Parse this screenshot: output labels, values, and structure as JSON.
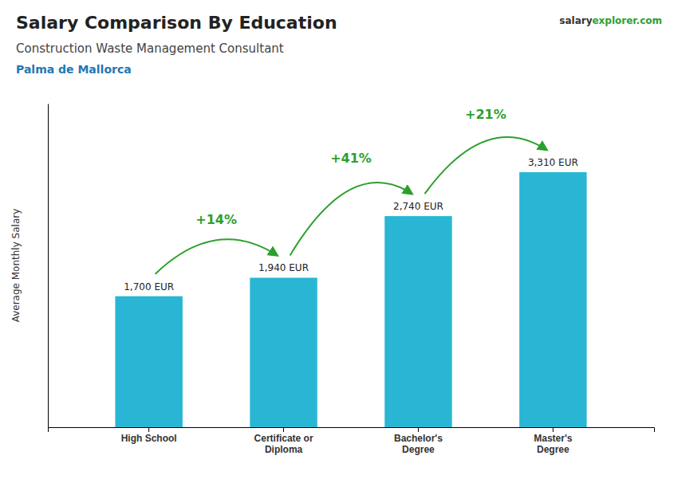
{
  "chart_data": {
    "type": "bar",
    "title": "Salary Comparison By Education",
    "subtitle": [
      "Construction Waste Management Consultant",
      "Palma de Mallorca"
    ],
    "brand": [
      "salary",
      "explorer.com"
    ],
    "ylabel": "Average Monthly Salary",
    "categories": [
      "High School",
      "Certificate or\nDiploma",
      "Bachelor's\nDegree",
      "Master's\nDegree"
    ],
    "values": [
      1700,
      1940,
      2740,
      3310
    ],
    "value_labels": [
      "1,700 EUR",
      "1,940 EUR",
      "2,740 EUR",
      "3,310 EUR"
    ],
    "data_labels": true,
    "annotations": [
      "+14%",
      "+41%",
      "+21%"
    ],
    "color": "#29b6d4",
    "ylim": [
      0,
      4200
    ],
    "tick_labels": "x",
    "grid": false
  }
}
